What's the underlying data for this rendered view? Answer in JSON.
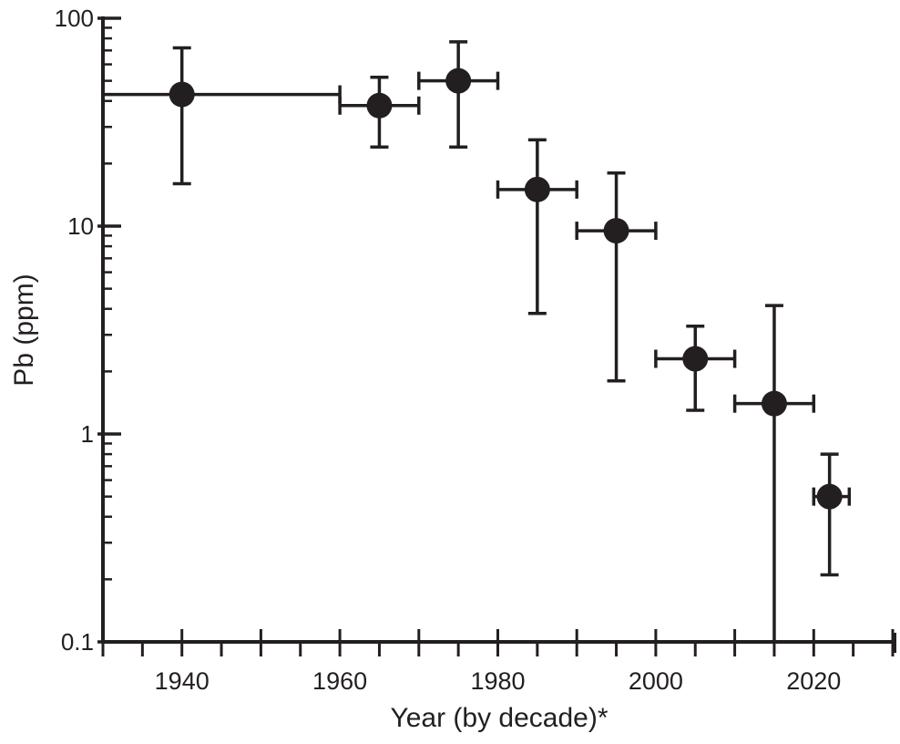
{
  "chart_data": {
    "type": "scatter",
    "title": "",
    "xlabel": "Year (by decade)*",
    "ylabel": "Pb (ppm)",
    "xlim": [
      1930,
      2030
    ],
    "ylim": [
      0.1,
      100
    ],
    "yscale": "log",
    "x_ticks": [
      1940,
      1960,
      1980,
      2000,
      2020
    ],
    "x_tick_labels": [
      "1940",
      "1960",
      "1980",
      "2000",
      "2020"
    ],
    "y_ticks": [
      0.1,
      1,
      10,
      100
    ],
    "y_tick_labels": [
      "0.1",
      "1",
      "10",
      "100"
    ],
    "grid": false,
    "points": [
      {
        "x": 1940,
        "y": 43,
        "x_range": [
          1930,
          1960
        ],
        "y_range": [
          16,
          72
        ]
      },
      {
        "x": 1965,
        "y": 38,
        "x_range": [
          1960,
          1970
        ],
        "y_range": [
          24,
          52
        ]
      },
      {
        "x": 1975,
        "y": 50,
        "x_range": [
          1970,
          1980
        ],
        "y_range": [
          24,
          77
        ]
      },
      {
        "x": 1985,
        "y": 15,
        "x_range": [
          1980,
          1990
        ],
        "y_range": [
          3.8,
          26
        ]
      },
      {
        "x": 1995,
        "y": 9.5,
        "x_range": [
          1990,
          2000
        ],
        "y_range": [
          1.8,
          18
        ]
      },
      {
        "x": 2005,
        "y": 2.3,
        "x_range": [
          2000,
          2010
        ],
        "y_range": [
          1.3,
          3.3
        ]
      },
      {
        "x": 2015,
        "y": 1.4,
        "x_range": [
          2010,
          2020
        ],
        "y_range": [
          0.1,
          4.15
        ]
      },
      {
        "x": 2022,
        "y": 0.5,
        "x_range": [
          2020,
          2024.5
        ],
        "y_range": [
          0.21,
          0.8
        ]
      }
    ],
    "color": "#231f20"
  }
}
